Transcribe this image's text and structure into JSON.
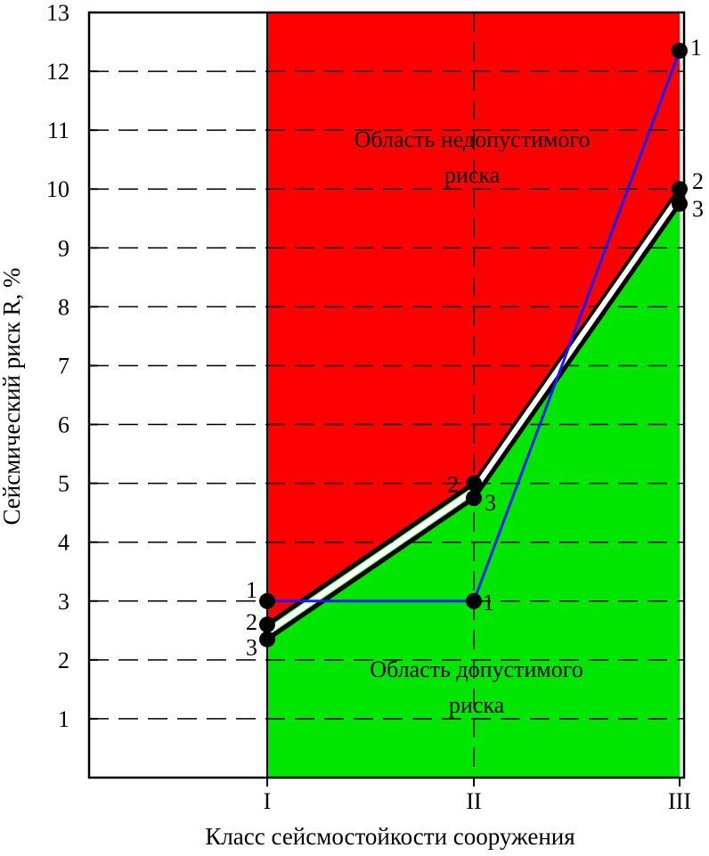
{
  "chart_data": {
    "type": "line",
    "xlabel": "Класс сейсмостойкости сооружения",
    "ylabel": "Сейсмический риск R, %",
    "categories": [
      "I",
      "II",
      "III"
    ],
    "ylim": [
      0,
      13
    ],
    "y_ticks": [
      1,
      2,
      3,
      4,
      5,
      6,
      7,
      8,
      9,
      10,
      11,
      12,
      13
    ],
    "grid": "dashed horizontal and vertical",
    "regions": [
      {
        "label_lines": [
          "Область недопустимого",
          "риска"
        ],
        "color": "#ff0000"
      },
      {
        "label_lines": [
          "Область допустимого",
          "риска"
        ],
        "color": "#00e600"
      }
    ],
    "series": [
      {
        "name": "1",
        "color": "#1a1aff",
        "values": [
          3.0,
          3.0,
          12.35
        ]
      },
      {
        "name": "2",
        "color": "#000000",
        "values": [
          2.6,
          5.0,
          10.0
        ]
      },
      {
        "name": "3",
        "color": "#000000",
        "values": [
          2.35,
          4.75,
          9.75
        ]
      }
    ]
  },
  "colors": {
    "unacceptable": "#ff0000",
    "acceptable": "#00e600",
    "series1": "#1a1aff",
    "boundary": "#000000"
  }
}
